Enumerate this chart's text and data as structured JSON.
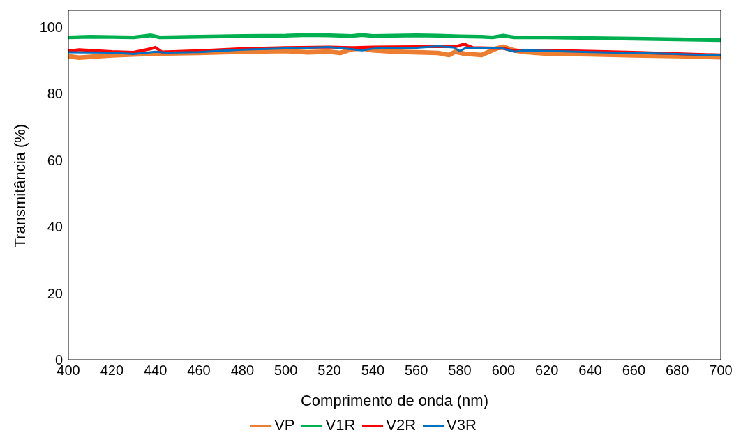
{
  "chart_data": {
    "type": "line",
    "xlabel": "Comprimento de onda (nm)",
    "ylabel": "Transmitância (%)",
    "xlim": [
      400,
      700
    ],
    "xticks": [
      400,
      420,
      440,
      460,
      480,
      500,
      520,
      540,
      560,
      580,
      600,
      620,
      640,
      660,
      680,
      700
    ],
    "ylim": [
      0,
      105
    ],
    "yticks": [
      0,
      20,
      40,
      60,
      80,
      100
    ],
    "grid": false,
    "legend": "bottom",
    "marker": "none",
    "line_style": "solid",
    "series": [
      {
        "name": "VP",
        "color": "#ed7d31",
        "x": [
          400,
          405,
          420,
          440,
          460,
          480,
          500,
          510,
          520,
          525,
          530,
          535,
          540,
          550,
          570,
          575,
          578,
          582,
          590,
          597,
          600,
          605,
          610,
          620,
          640,
          660,
          680,
          700
        ],
        "values": [
          91.2,
          90.8,
          91.5,
          92.0,
          92.2,
          92.6,
          92.8,
          92.4,
          92.6,
          92.2,
          93.3,
          93.6,
          93.0,
          92.6,
          92.2,
          91.6,
          92.6,
          92.0,
          91.6,
          93.6,
          94.1,
          93.0,
          92.5,
          92.0,
          91.8,
          91.5,
          91.3,
          90.9
        ]
      },
      {
        "name": "V1R",
        "color": "#00b050",
        "x": [
          400,
          410,
          420,
          430,
          438,
          442,
          460,
          480,
          500,
          510,
          520,
          530,
          535,
          540,
          560,
          570,
          580,
          590,
          595,
          600,
          605,
          620,
          640,
          660,
          680,
          700
        ],
        "values": [
          96.9,
          97.1,
          97.0,
          96.9,
          97.5,
          96.9,
          97.1,
          97.3,
          97.4,
          97.6,
          97.5,
          97.3,
          97.6,
          97.3,
          97.5,
          97.4,
          97.2,
          97.1,
          96.9,
          97.4,
          96.9,
          96.9,
          96.7,
          96.5,
          96.3,
          96.1
        ]
      },
      {
        "name": "V2R",
        "color": "#ff0000",
        "x": [
          400,
          405,
          420,
          430,
          438,
          440,
          443,
          460,
          480,
          500,
          520,
          530,
          540,
          560,
          570,
          578,
          582,
          586,
          600,
          605,
          620,
          640,
          660,
          680,
          700
        ],
        "values": [
          92.8,
          93.2,
          92.6,
          92.4,
          93.5,
          93.9,
          92.5,
          92.9,
          93.5,
          93.8,
          94.0,
          93.8,
          94.0,
          94.1,
          94.2,
          94.1,
          94.9,
          93.8,
          93.6,
          92.8,
          93.0,
          92.7,
          92.4,
          92.0,
          91.6
        ]
      },
      {
        "name": "V3R",
        "color": "#0070c0",
        "x": [
          400,
          420,
          430,
          440,
          445,
          460,
          480,
          500,
          520,
          535,
          540,
          560,
          570,
          577,
          580,
          583,
          600,
          605,
          610,
          640,
          660,
          680,
          700
        ],
        "values": [
          92.4,
          92.3,
          91.9,
          92.6,
          92.3,
          92.5,
          93.2,
          93.6,
          94.0,
          93.0,
          93.5,
          93.8,
          94.2,
          93.9,
          92.8,
          93.8,
          93.5,
          92.6,
          93.0,
          92.5,
          92.2,
          91.9,
          91.5
        ]
      }
    ]
  }
}
